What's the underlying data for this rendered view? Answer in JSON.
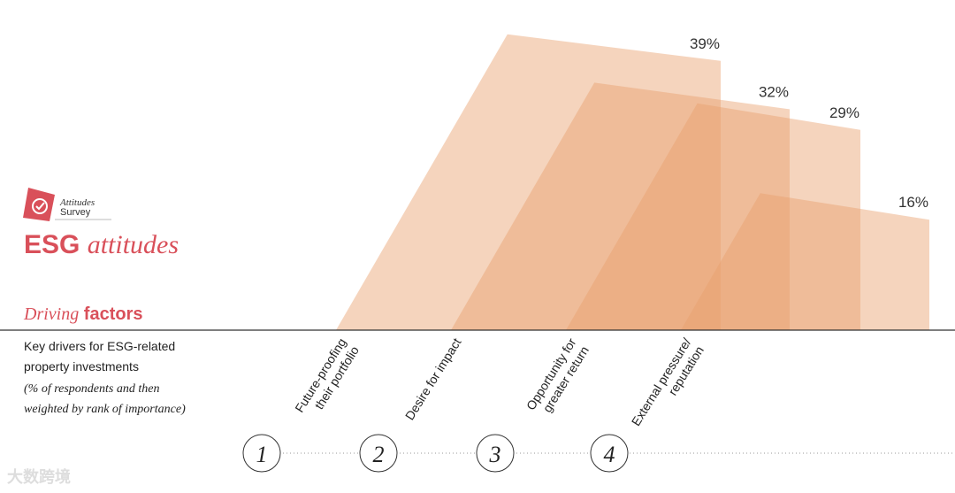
{
  "chart_data": {
    "type": "skewed-area",
    "badge": [
      "Attitudes",
      "Survey"
    ],
    "title": {
      "plain": "ESG",
      "italic": "attitudes"
    },
    "subtitle": {
      "italic": "Driving",
      "plain": "factors"
    },
    "description": [
      "Key drivers for ESG-related",
      "property investments"
    ],
    "note": [
      "(% of respondents and then",
      "weighted by rank of importance)"
    ],
    "categories": [
      [
        "Future-proofing",
        "their portfolio"
      ],
      [
        "Desire for impact"
      ],
      [
        "Opportunity for",
        "greater return"
      ],
      [
        "External pressure/",
        "reputation"
      ]
    ],
    "ranks": [
      1,
      2,
      3,
      4
    ],
    "values": [
      39,
      32,
      29,
      16
    ],
    "value_labels": [
      "39%",
      "32%",
      "29%",
      "16%"
    ],
    "color": "#e8a06c",
    "watermark": "大数跨境"
  }
}
